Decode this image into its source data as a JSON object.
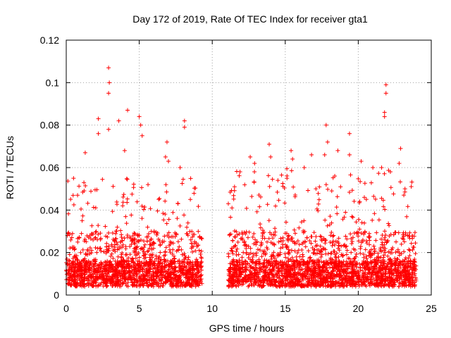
{
  "chart_data": {
    "type": "scatter",
    "title": "Day 172 of 2019, Rate Of TEC Index for receiver gta1",
    "xlabel": "GPS time / hours",
    "ylabel": "ROTI / TECUs",
    "xlim": [
      0,
      25
    ],
    "ylim": [
      0,
      0.12
    ],
    "xticks": [
      0,
      5,
      10,
      15,
      20,
      25
    ],
    "xtick_labels": [
      "0",
      "5",
      "10",
      "15",
      "20",
      "25"
    ],
    "yticks": [
      0,
      0.02,
      0.04,
      0.06,
      0.08,
      0.1,
      0.12
    ],
    "ytick_labels": [
      "0",
      "0.02",
      "0.04",
      "0.06",
      "0.08",
      "0.1",
      "0.12"
    ],
    "grid": true,
    "marker": "plus",
    "color": "#ff0000",
    "data_gap_hours": [
      9.3,
      11.1
    ],
    "observed_ranges": [
      {
        "x": [
          0.0,
          9.3
        ],
        "y": [
          0.003,
          0.055
        ]
      },
      {
        "x": [
          11.1,
          24.0
        ],
        "y": [
          0.003,
          0.06
        ]
      }
    ],
    "peaks": [
      {
        "x": 0.5,
        "y": 0.055
      },
      {
        "x": 1.3,
        "y": 0.067
      },
      {
        "x": 2.2,
        "y": 0.083
      },
      {
        "x": 2.2,
        "y": 0.076
      },
      {
        "x": 2.9,
        "y": 0.107
      },
      {
        "x": 2.95,
        "y": 0.1
      },
      {
        "x": 2.9,
        "y": 0.095
      },
      {
        "x": 2.9,
        "y": 0.078
      },
      {
        "x": 3.6,
        "y": 0.082
      },
      {
        "x": 4.2,
        "y": 0.087
      },
      {
        "x": 4.0,
        "y": 0.068
      },
      {
        "x": 5.0,
        "y": 0.084
      },
      {
        "x": 5.1,
        "y": 0.08
      },
      {
        "x": 5.2,
        "y": 0.075
      },
      {
        "x": 5.6,
        "y": 0.052
      },
      {
        "x": 6.9,
        "y": 0.072
      },
      {
        "x": 6.8,
        "y": 0.065
      },
      {
        "x": 7.0,
        "y": 0.063
      },
      {
        "x": 7.8,
        "y": 0.06
      },
      {
        "x": 8.1,
        "y": 0.082
      },
      {
        "x": 8.1,
        "y": 0.079
      },
      {
        "x": 8.5,
        "y": 0.045
      },
      {
        "x": 11.1,
        "y": 0.043
      },
      {
        "x": 12.6,
        "y": 0.065
      },
      {
        "x": 12.9,
        "y": 0.062
      },
      {
        "x": 13.9,
        "y": 0.071
      },
      {
        "x": 14.0,
        "y": 0.065
      },
      {
        "x": 15.4,
        "y": 0.068
      },
      {
        "x": 15.5,
        "y": 0.064
      },
      {
        "x": 16.3,
        "y": 0.06
      },
      {
        "x": 16.8,
        "y": 0.066
      },
      {
        "x": 17.8,
        "y": 0.08
      },
      {
        "x": 17.9,
        "y": 0.072
      },
      {
        "x": 17.7,
        "y": 0.066
      },
      {
        "x": 18.6,
        "y": 0.068
      },
      {
        "x": 19.4,
        "y": 0.076
      },
      {
        "x": 19.4,
        "y": 0.066
      },
      {
        "x": 20.2,
        "y": 0.063
      },
      {
        "x": 21.0,
        "y": 0.06
      },
      {
        "x": 21.6,
        "y": 0.06
      },
      {
        "x": 21.9,
        "y": 0.099
      },
      {
        "x": 21.9,
        "y": 0.095
      },
      {
        "x": 21.8,
        "y": 0.086
      },
      {
        "x": 21.8,
        "y": 0.084
      },
      {
        "x": 22.2,
        "y": 0.058
      },
      {
        "x": 22.9,
        "y": 0.069
      },
      {
        "x": 22.8,
        "y": 0.062
      },
      {
        "x": 23.2,
        "y": 0.05
      }
    ]
  }
}
